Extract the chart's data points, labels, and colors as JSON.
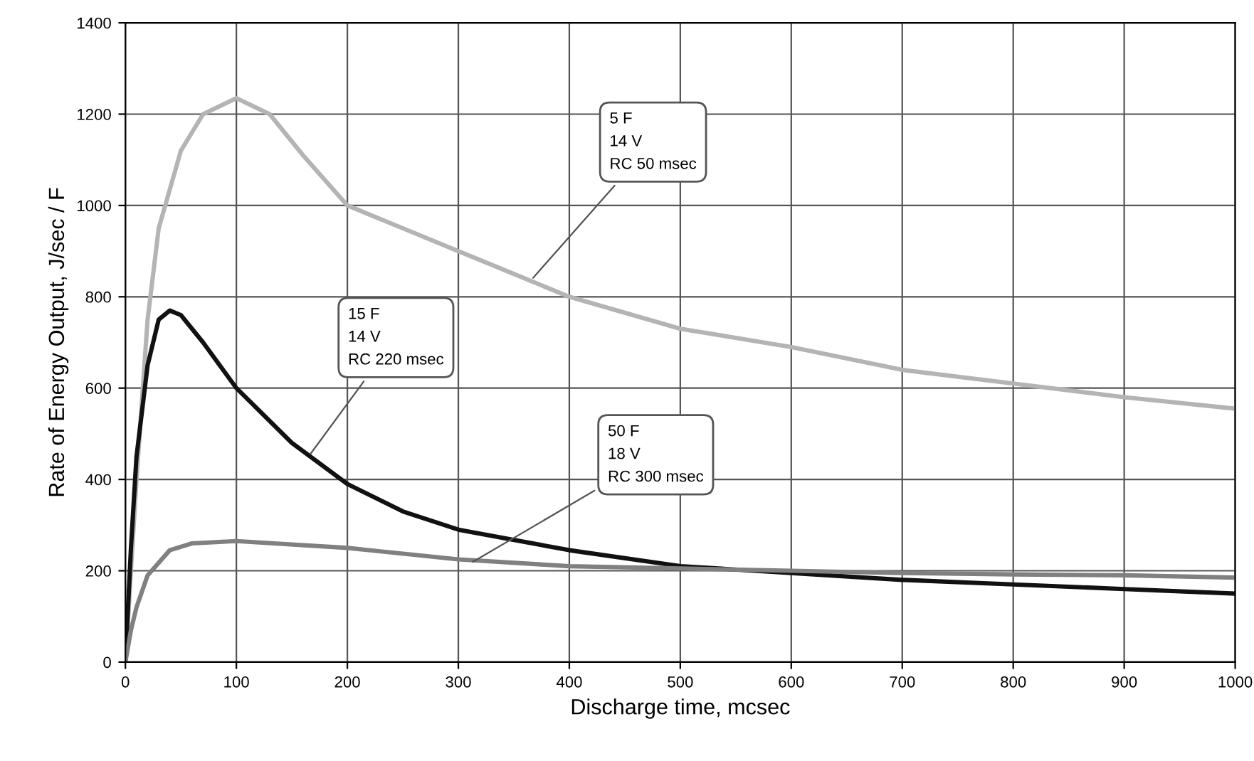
{
  "chart_data": {
    "type": "line",
    "xlabel": "Discharge time, mcsec",
    "ylabel": "Rate of Energy Output, J/sec / F",
    "xlim": [
      0,
      1000
    ],
    "ylim": [
      0,
      1400
    ],
    "xticks": [
      0,
      100,
      200,
      300,
      400,
      500,
      600,
      700,
      800,
      900,
      1000
    ],
    "yticks": [
      0,
      200,
      400,
      600,
      800,
      1000,
      1200,
      1400
    ],
    "grid": true,
    "legend": false,
    "marker": "none",
    "line_style": "solid",
    "series": [
      {
        "color": "#b4b4b4",
        "x": [
          0,
          5,
          10,
          20,
          30,
          50,
          70,
          100,
          130,
          160,
          200,
          250,
          300,
          350,
          400,
          500,
          600,
          700,
          800,
          900,
          1000
        ],
        "values": [
          0,
          200,
          400,
          750,
          950,
          1120,
          1200,
          1235,
          1200,
          1110,
          1000,
          950,
          900,
          850,
          800,
          730,
          690,
          640,
          610,
          580,
          555
        ]
      },
      {
        "color": "#111111",
        "x": [
          0,
          5,
          10,
          20,
          30,
          40,
          50,
          70,
          100,
          150,
          200,
          250,
          300,
          400,
          500,
          600,
          700,
          800,
          900,
          1000
        ],
        "values": [
          0,
          250,
          450,
          650,
          750,
          770,
          760,
          700,
          600,
          480,
          390,
          330,
          290,
          245,
          210,
          195,
          180,
          170,
          160,
          150
        ]
      },
      {
        "color": "#808080",
        "x": [
          0,
          5,
          10,
          20,
          40,
          60,
          100,
          200,
          300,
          400,
          500,
          600,
          700,
          800,
          900,
          1000
        ],
        "values": [
          0,
          70,
          120,
          190,
          245,
          260,
          265,
          250,
          225,
          210,
          205,
          200,
          195,
          192,
          190,
          185
        ]
      }
    ],
    "annotations": [
      {
        "text": "5 F\n14 V\nRC 50 msec",
        "x": 365,
        "y": 835
      },
      {
        "text": "15 F\n14 V\nRC 220 msec",
        "x": 165,
        "y": 450
      },
      {
        "text": "50 F\n18 V\nRC 300 msec",
        "x": 310,
        "y": 215
      }
    ]
  }
}
